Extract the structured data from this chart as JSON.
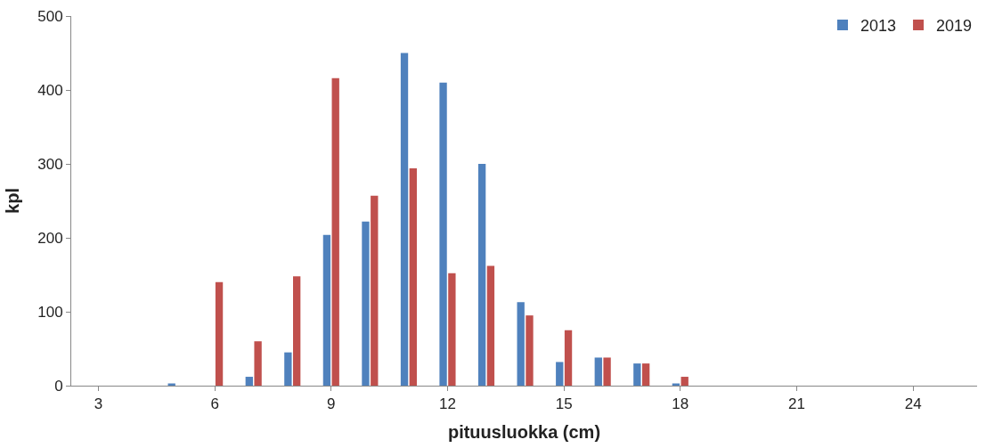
{
  "chart_data": {
    "type": "bar",
    "xlabel": "pituusluokka (cm)",
    "ylabel": "kpl",
    "categories": [
      "3",
      null,
      null,
      "6",
      null,
      null,
      "9",
      null,
      null,
      "12",
      null,
      null,
      "15",
      null,
      null,
      "18",
      null,
      null,
      "21",
      null,
      null,
      "24",
      null
    ],
    "series": [
      {
        "name": "2013",
        "color": "#4f81bd",
        "values": [
          0,
          0,
          3,
          0,
          12,
          45,
          204,
          222,
          450,
          410,
          300,
          113,
          32,
          38,
          30,
          3,
          0,
          0,
          0,
          0,
          0,
          0,
          0
        ]
      },
      {
        "name": "2019",
        "color": "#c0504d",
        "values": [
          0,
          0,
          0,
          140,
          60,
          148,
          416,
          257,
          294,
          152,
          162,
          95,
          75,
          38,
          30,
          12,
          0,
          0,
          0,
          0,
          0,
          0,
          0
        ]
      }
    ],
    "ylim": [
      0,
      500
    ],
    "yticks": [
      0,
      100,
      200,
      300,
      400,
      500
    ],
    "legend": "top right"
  }
}
